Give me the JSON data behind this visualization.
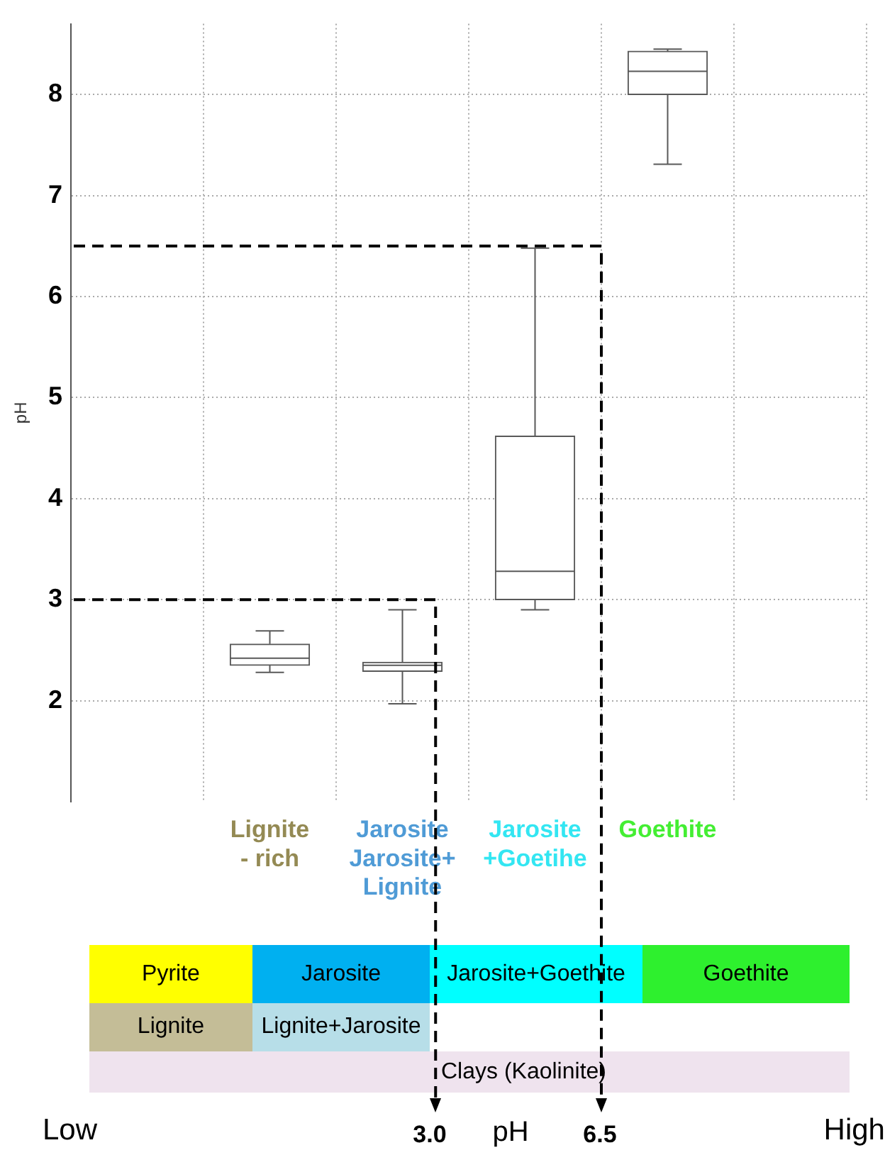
{
  "chart_data": {
    "type": "box",
    "ylabel": "pH",
    "categories": [
      "Lignite\n- rich",
      "Jarosite\nJarosite+\nLignite",
      "Jarosite\n+Goetihe",
      "Goethite"
    ],
    "series": [
      {
        "color": "#595959",
        "boxes": [
          {
            "low": 2.28,
            "q1": 2.35,
            "median": 2.42,
            "q3": 2.56,
            "high": 2.69
          },
          {
            "low": 1.97,
            "q1": 2.29,
            "median": 2.35,
            "q3": 2.38,
            "high": 2.9
          },
          {
            "low": 2.9,
            "q1": 3.0,
            "median": 3.28,
            "q3": 4.62,
            "high": 6.48
          },
          {
            "low": 7.31,
            "q1": 8.0,
            "median": 8.23,
            "q3": 8.43,
            "high": 8.45
          }
        ]
      }
    ],
    "ylim": [
      1,
      8.7
    ],
    "yticks": [
      2,
      3,
      4,
      5,
      6,
      7,
      8
    ],
    "grid": true,
    "ref_lines": [
      {
        "axis": "y",
        "value": 3.0,
        "line_style": "dashed"
      },
      {
        "axis": "y",
        "value": 6.5,
        "line_style": "dashed"
      }
    ],
    "annotations": [
      "Pyrite",
      "Jarosite",
      "Jarosite+Goethite",
      "Goethite",
      "Lignite",
      "Lignite+Jarosite",
      "Clays (Kaolinite)",
      "Low",
      "High",
      "pH",
      "3.0",
      "6.5"
    ]
  }
}
